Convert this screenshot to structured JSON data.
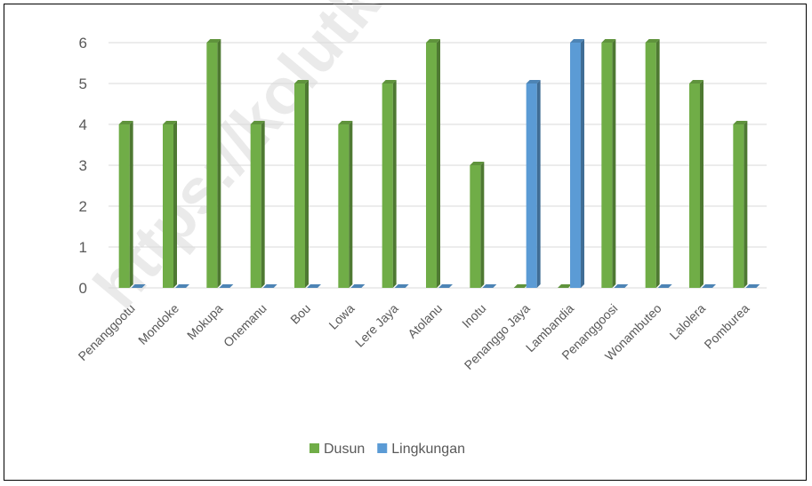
{
  "watermark": "https://kolutkab.bps.go.id",
  "chart_data": {
    "type": "bar",
    "title": "",
    "xlabel": "",
    "ylabel": "",
    "ylim": [
      0,
      6
    ],
    "yticks": [
      0,
      1,
      2,
      3,
      4,
      5,
      6
    ],
    "grid": true,
    "legend_position": "bottom",
    "categories": [
      "Penanggootu",
      "Mondoke",
      "Mokupa",
      "Onemanu",
      "Bou",
      "Lowa",
      "Lere Jaya",
      "Atolanu",
      "Inotu",
      "Penanggo Jaya",
      "Lambandia",
      "Penanggoosi",
      "Wonambuteo",
      "Lalolera",
      "Pomburea"
    ],
    "series": [
      {
        "name": "Dusun",
        "color": "#70AD47",
        "values": [
          4,
          4,
          6,
          4,
          5,
          4,
          5,
          6,
          3,
          0,
          0,
          6,
          6,
          5,
          4
        ]
      },
      {
        "name": "Lingkungan",
        "color": "#5B9BD5",
        "values": [
          0,
          0,
          0,
          0,
          0,
          0,
          0,
          0,
          0,
          5,
          6,
          0,
          0,
          0,
          0
        ]
      }
    ]
  }
}
